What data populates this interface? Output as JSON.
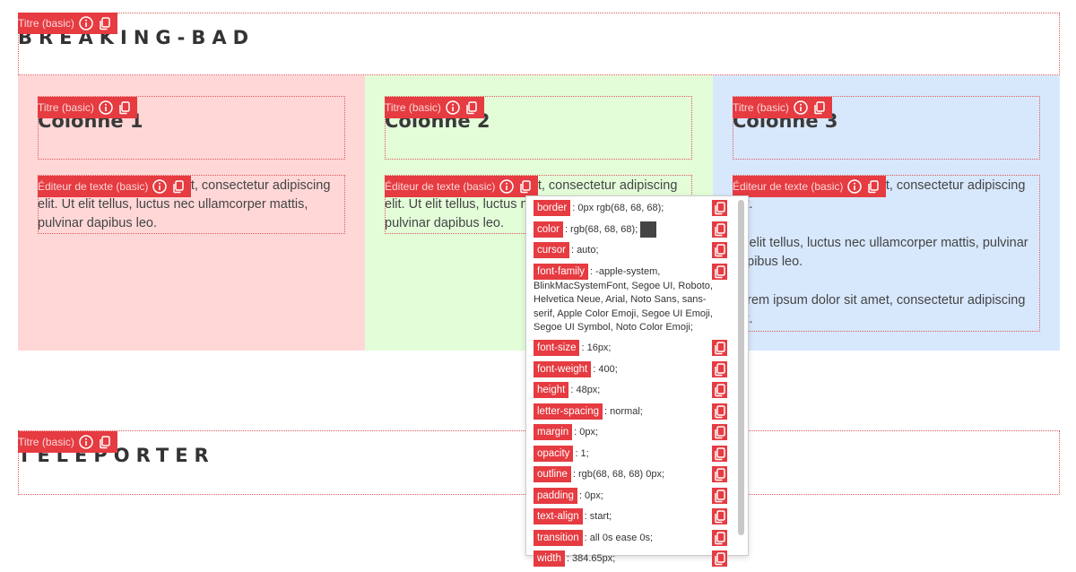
{
  "header": {
    "badge": "Titre (basic)",
    "title": "BREAKING-BAD"
  },
  "columns": [
    {
      "title_badge": "Titre (basic)",
      "title": "Colonne 1",
      "text_badge": "Éditeur de texte (basic)",
      "paragraphs": [
        "Lorem ipsum dolor sit amet, consectetur adipiscing elit. Ut elit tellus, luctus nec ullamcorper mattis, pulvinar dapibus leo."
      ]
    },
    {
      "title_badge": "Titre (basic)",
      "title": "Colonne 2",
      "text_badge": "Éditeur de texte (basic)",
      "paragraphs": [
        "Lorem ipsum dolor sit amet, consectetur adipiscing elit. Ut elit tellus, luctus nec ullamcorper mattis, pulvinar dapibus leo."
      ]
    },
    {
      "title_badge": "Titre (basic)",
      "title": "Colonne 3",
      "text_badge": "Éditeur de texte (basic)",
      "paragraphs": [
        "Lorem ipsum dolor sit amet, consectetur adipiscing elit.",
        "Ut elit tellus, luctus nec ullamcorper mattis, pulvinar dapibus leo.",
        "Lorem ipsum dolor sit amet, consectetur adipiscing elit."
      ]
    }
  ],
  "footer": {
    "badge": "Titre (basic)",
    "title": "TELEPORTER"
  },
  "inspector": {
    "properties": [
      {
        "name": "border",
        "value": ": 0px rgb(68, 68, 68);"
      },
      {
        "name": "color",
        "value": ": rgb(68, 68, 68);"
      },
      {
        "name": "cursor",
        "value": ": auto;"
      },
      {
        "name": "font-family",
        "value": ": -apple-system, BlinkMacSystemFont, Segoe UI, Roboto, Helvetica Neue, Arial, Noto Sans, sans-serif, Apple Color Emoji, Segoe UI Emoji, Segoe UI Symbol, Noto Color Emoji;"
      },
      {
        "name": "font-size",
        "value": ": 16px;"
      },
      {
        "name": "font-weight",
        "value": ": 400;"
      },
      {
        "name": "height",
        "value": ": 48px;"
      },
      {
        "name": "letter-spacing",
        "value": ": normal;"
      },
      {
        "name": "margin",
        "value": ": 0px;"
      },
      {
        "name": "opacity",
        "value": ": 1;"
      },
      {
        "name": "outline",
        "value": ": rgb(68, 68, 68) 0px;"
      },
      {
        "name": "padding",
        "value": ": 0px;"
      },
      {
        "name": "text-align",
        "value": ": start;"
      },
      {
        "name": "transition",
        "value": ": all 0s ease 0s;"
      },
      {
        "name": "width",
        "value": ": 384.65px;"
      }
    ]
  }
}
